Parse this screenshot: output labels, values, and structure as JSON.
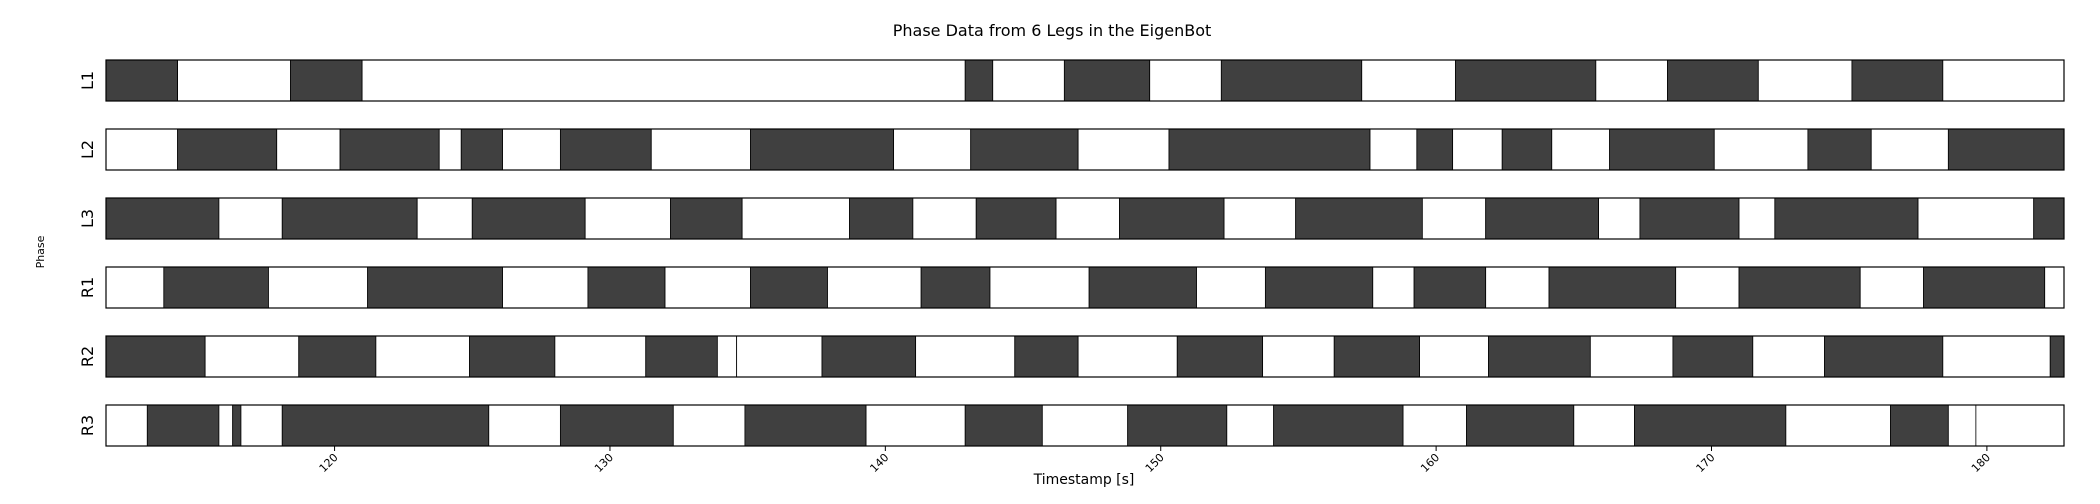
{
  "chart_data": {
    "type": "gait-phase",
    "title": "Phase Data from 6 Legs in the EigenBot",
    "xlabel": "Timestamp [s]",
    "ylabel": "Phase",
    "xlim": [
      111.7,
      182.8
    ],
    "xticks": [
      120,
      130,
      140,
      150,
      160,
      170,
      180
    ],
    "grid": false,
    "colors": {
      "stance": "#404040",
      "swing": "#ffffff",
      "edge": "#000000"
    },
    "series": [
      {
        "name": "L1",
        "segments": [
          [
            111.7,
            114.3,
            1
          ],
          [
            114.3,
            118.4,
            0
          ],
          [
            118.4,
            121.0,
            1
          ],
          [
            121.0,
            142.9,
            0
          ],
          [
            142.9,
            143.9,
            1
          ],
          [
            143.9,
            146.5,
            0
          ],
          [
            146.5,
            149.6,
            1
          ],
          [
            149.6,
            152.2,
            0
          ],
          [
            152.2,
            157.3,
            1
          ],
          [
            157.3,
            160.7,
            0
          ],
          [
            160.7,
            165.8,
            1
          ],
          [
            165.8,
            168.4,
            0
          ],
          [
            168.4,
            171.7,
            1
          ],
          [
            171.7,
            175.1,
            0
          ],
          [
            175.1,
            178.4,
            1
          ],
          [
            178.4,
            182.8,
            0
          ]
        ]
      },
      {
        "name": "L2",
        "segments": [
          [
            111.7,
            114.3,
            0
          ],
          [
            114.3,
            117.9,
            1
          ],
          [
            117.9,
            120.2,
            0
          ],
          [
            120.2,
            123.8,
            1
          ],
          [
            123.8,
            124.6,
            0
          ],
          [
            124.6,
            126.1,
            1
          ],
          [
            126.1,
            128.2,
            0
          ],
          [
            128.2,
            131.5,
            1
          ],
          [
            131.5,
            135.1,
            0
          ],
          [
            135.1,
            140.3,
            1
          ],
          [
            140.3,
            143.1,
            0
          ],
          [
            143.1,
            147.0,
            1
          ],
          [
            147.0,
            150.3,
            0
          ],
          [
            150.3,
            157.6,
            1
          ],
          [
            157.6,
            159.3,
            0
          ],
          [
            159.3,
            160.6,
            1
          ],
          [
            160.6,
            162.4,
            0
          ],
          [
            162.4,
            164.2,
            1
          ],
          [
            164.2,
            166.3,
            0
          ],
          [
            166.3,
            170.1,
            1
          ],
          [
            170.1,
            173.5,
            0
          ],
          [
            173.5,
            175.8,
            1
          ],
          [
            175.8,
            178.6,
            0
          ],
          [
            178.6,
            182.8,
            1
          ]
        ]
      },
      {
        "name": "L3",
        "segments": [
          [
            111.7,
            115.8,
            1
          ],
          [
            115.8,
            118.1,
            0
          ],
          [
            118.1,
            123.0,
            1
          ],
          [
            123.0,
            125.0,
            0
          ],
          [
            125.0,
            129.1,
            1
          ],
          [
            129.1,
            132.2,
            0
          ],
          [
            132.2,
            134.8,
            1
          ],
          [
            134.8,
            138.7,
            0
          ],
          [
            138.7,
            141.0,
            1
          ],
          [
            141.0,
            143.3,
            0
          ],
          [
            143.3,
            146.2,
            1
          ],
          [
            146.2,
            148.5,
            0
          ],
          [
            148.5,
            152.3,
            1
          ],
          [
            152.3,
            154.9,
            0
          ],
          [
            154.9,
            159.5,
            1
          ],
          [
            159.5,
            161.8,
            0
          ],
          [
            161.8,
            165.9,
            1
          ],
          [
            165.9,
            167.4,
            0
          ],
          [
            167.4,
            171.0,
            1
          ],
          [
            171.0,
            172.3,
            0
          ],
          [
            172.3,
            177.5,
            1
          ],
          [
            177.5,
            181.7,
            0
          ],
          [
            181.7,
            182.8,
            1
          ]
        ]
      },
      {
        "name": "R1",
        "segments": [
          [
            111.7,
            113.8,
            0
          ],
          [
            113.8,
            117.6,
            1
          ],
          [
            117.6,
            121.2,
            0
          ],
          [
            121.2,
            126.1,
            1
          ],
          [
            126.1,
            129.2,
            0
          ],
          [
            129.2,
            132.0,
            1
          ],
          [
            132.0,
            135.1,
            0
          ],
          [
            135.1,
            137.9,
            1
          ],
          [
            137.9,
            141.3,
            0
          ],
          [
            141.3,
            143.8,
            1
          ],
          [
            143.8,
            147.4,
            0
          ],
          [
            147.4,
            151.3,
            1
          ],
          [
            151.3,
            153.8,
            0
          ],
          [
            153.8,
            157.7,
            1
          ],
          [
            157.7,
            159.2,
            0
          ],
          [
            159.2,
            161.8,
            1
          ],
          [
            161.8,
            164.1,
            0
          ],
          [
            164.1,
            168.7,
            1
          ],
          [
            168.7,
            171.0,
            0
          ],
          [
            171.0,
            175.4,
            1
          ],
          [
            175.4,
            177.7,
            0
          ],
          [
            177.7,
            182.1,
            1
          ],
          [
            182.1,
            182.8,
            0
          ]
        ]
      },
      {
        "name": "R2",
        "segments": [
          [
            111.7,
            115.3,
            1
          ],
          [
            115.3,
            118.7,
            0
          ],
          [
            118.7,
            121.5,
            1
          ],
          [
            121.5,
            124.9,
            0
          ],
          [
            124.9,
            128.0,
            1
          ],
          [
            128.0,
            131.3,
            0
          ],
          [
            131.3,
            133.9,
            1
          ],
          [
            133.9,
            134.6,
            0
          ],
          [
            134.6,
            137.7,
            0
          ],
          [
            137.7,
            141.1,
            1
          ],
          [
            141.1,
            144.7,
            0
          ],
          [
            144.7,
            147.0,
            1
          ],
          [
            147.0,
            150.6,
            0
          ],
          [
            150.6,
            153.7,
            1
          ],
          [
            153.7,
            156.3,
            0
          ],
          [
            156.3,
            159.4,
            1
          ],
          [
            159.4,
            161.9,
            0
          ],
          [
            161.9,
            165.6,
            1
          ],
          [
            165.6,
            168.6,
            0
          ],
          [
            168.6,
            171.5,
            1
          ],
          [
            171.5,
            174.1,
            0
          ],
          [
            174.1,
            178.4,
            1
          ],
          [
            178.4,
            182.3,
            0
          ],
          [
            182.3,
            182.8,
            1
          ]
        ]
      },
      {
        "name": "R3",
        "segments": [
          [
            111.7,
            113.2,
            0
          ],
          [
            113.2,
            115.8,
            1
          ],
          [
            115.8,
            116.3,
            0
          ],
          [
            116.3,
            116.6,
            1
          ],
          [
            116.6,
            118.1,
            0
          ],
          [
            118.1,
            125.6,
            1
          ],
          [
            125.6,
            128.2,
            0
          ],
          [
            128.2,
            132.3,
            1
          ],
          [
            132.3,
            134.9,
            0
          ],
          [
            134.9,
            139.3,
            1
          ],
          [
            139.3,
            142.9,
            0
          ],
          [
            142.9,
            145.7,
            1
          ],
          [
            145.7,
            148.8,
            0
          ],
          [
            148.8,
            152.4,
            1
          ],
          [
            152.4,
            154.1,
            0
          ],
          [
            154.1,
            158.8,
            1
          ],
          [
            158.8,
            161.1,
            0
          ],
          [
            161.1,
            165.0,
            1
          ],
          [
            165.0,
            167.2,
            0
          ],
          [
            167.2,
            172.7,
            1
          ],
          [
            172.7,
            176.5,
            0
          ],
          [
            176.5,
            178.6,
            1
          ],
          [
            178.6,
            179.6,
            0
          ],
          [
            179.6,
            182.8,
            0
          ]
        ]
      }
    ]
  }
}
